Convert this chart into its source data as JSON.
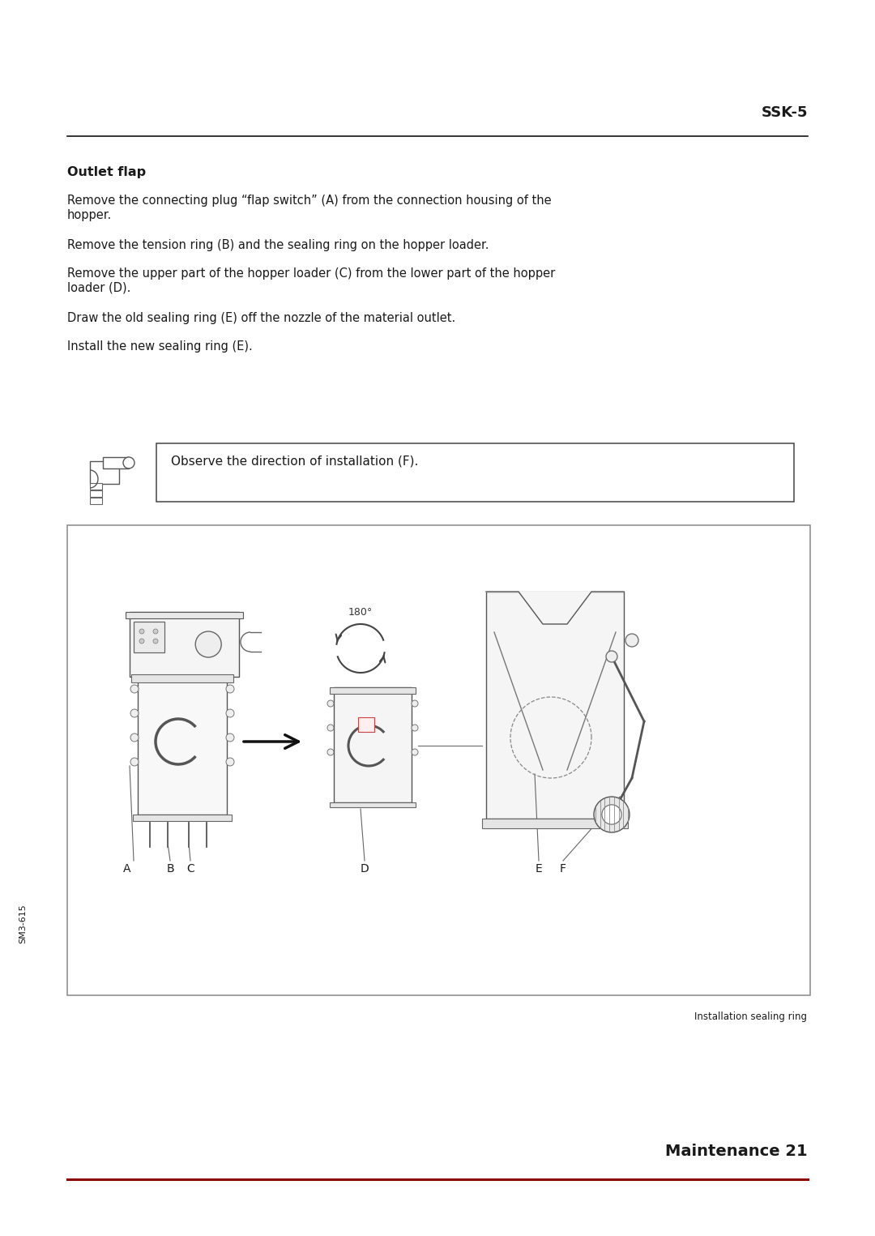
{
  "bg_color": "#ffffff",
  "text_color": "#1a1a1a",
  "header_text": "SSK-5",
  "section_title": "Outlet flap",
  "para1_line1": "Remove the connecting plug “flap switch” (A) from the connection housing of the",
  "para1_line2": "hopper.",
  "para2": "Remove the tension ring (B) and the sealing ring on the hopper loader.",
  "para3_line1": "Remove the upper part of the hopper loader (C) from the lower part of the hopper",
  "para3_line2": "loader (D).",
  "para4": "Draw the old sealing ring (E) off the nozzle of the material outlet.",
  "para5": "Install the new sealing ring (E).",
  "note_text": "Observe the direction of installation (F).",
  "image_caption": "Installation sealing ring",
  "footer_line_color": "#8B0000",
  "footer_text": "Maintenance 21",
  "sidebar_text": "SM3-615"
}
